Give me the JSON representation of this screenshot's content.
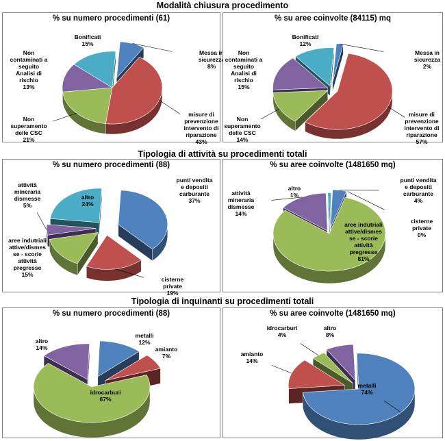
{
  "sections": [
    {
      "title": "Modalità chiusura procedimento"
    },
    {
      "title": "Tipologia di attività su procedimenti totali"
    },
    {
      "title": "Tipologia di inquinanti su procedimenti totali"
    }
  ],
  "colors": {
    "blue": "#4f81bd",
    "red": "#c0504d",
    "green": "#9bbb59",
    "purple": "#8064a2",
    "aqua": "#4bacc6"
  },
  "chart_data": [
    {
      "type": "pie",
      "title": "% su numero procedimenti (61)",
      "slices": [
        {
          "label": [
            "Messa in",
            "sicurezza"
          ],
          "pct": "8%",
          "value": 8,
          "color": "blue"
        },
        {
          "label": [
            "misure di",
            "prevenzione",
            "intervento di",
            "riparazione"
          ],
          "pct": "43%",
          "value": 43,
          "color": "red"
        },
        {
          "label": [
            "Non",
            "superamento",
            "delle CSC"
          ],
          "pct": "21%",
          "value": 21,
          "color": "green"
        },
        {
          "label": [
            "Non",
            "contaminati a",
            "seguito",
            "Analisi di",
            "rischio"
          ],
          "pct": "13%",
          "value": 13,
          "color": "purple"
        },
        {
          "label": [
            "Bonificati"
          ],
          "pct": "15%",
          "value": 15,
          "color": "aqua"
        }
      ]
    },
    {
      "type": "pie",
      "title": "% su aree coinvolte (84115) mq",
      "slices": [
        {
          "label": [
            "Messa in",
            "sicurezza"
          ],
          "pct": "2%",
          "value": 2,
          "color": "blue"
        },
        {
          "label": [
            "misure di",
            "prevenzione",
            "intervento di",
            "riparazione"
          ],
          "pct": "57%",
          "value": 57,
          "color": "red"
        },
        {
          "label": [
            "Non",
            "superamento",
            "delle CSC"
          ],
          "pct": "14%",
          "value": 14,
          "color": "green"
        },
        {
          "label": [
            "Non",
            "contaminati a",
            "seguito",
            "Analisi di",
            "rischio"
          ],
          "pct": "15%",
          "value": 15,
          "color": "purple"
        },
        {
          "label": [
            "Bonificati"
          ],
          "pct": "12%",
          "value": 12,
          "color": "aqua"
        }
      ]
    },
    {
      "type": "pie",
      "title": "% su numero procedimenti (88)",
      "slices": [
        {
          "label": [
            "punti vendita",
            "e depositi",
            "carburante"
          ],
          "pct": "37%",
          "value": 37,
          "color": "blue"
        },
        {
          "label": [
            "cisterne",
            "private"
          ],
          "pct": "19%",
          "value": 19,
          "color": "red"
        },
        {
          "label": [
            "aree indutriali",
            "attive/dismes",
            "se - scorie",
            "attività",
            "pregresse"
          ],
          "pct": "15%",
          "value": 15,
          "color": "green"
        },
        {
          "label": [
            "attività",
            "mineraria",
            "dismesse"
          ],
          "pct": "5%",
          "value": 5,
          "color": "purple"
        },
        {
          "label": [
            "altro"
          ],
          "pct": "24%",
          "value": 24,
          "color": "aqua"
        }
      ]
    },
    {
      "type": "pie",
      "title": "% su aree coinvolte (1481650 mq)",
      "slices": [
        {
          "label": [
            "punti vendita",
            "e depositi",
            "carburante"
          ],
          "pct": "4%",
          "value": 4,
          "color": "blue"
        },
        {
          "label": [
            "cisterne",
            "private"
          ],
          "pct": "0%",
          "value": 0,
          "color": "red"
        },
        {
          "label": [
            "aree indutriali",
            "attive/dismes",
            "se - scorie",
            "attività",
            "pregresse"
          ],
          "pct": "81%",
          "value": 81,
          "color": "green"
        },
        {
          "label": [
            "attività",
            "mineraria",
            "dismesse"
          ],
          "pct": "14%",
          "value": 14,
          "color": "purple"
        },
        {
          "label": [
            "altro"
          ],
          "pct": "1%",
          "value": 1,
          "color": "aqua"
        }
      ]
    },
    {
      "type": "pie",
      "title": "% su numero procedimenti (88)",
      "slices": [
        {
          "label": [
            "metalli"
          ],
          "pct": "12%",
          "value": 12,
          "color": "blue"
        },
        {
          "label": [
            "amianto"
          ],
          "pct": "7%",
          "value": 7,
          "color": "red"
        },
        {
          "label": [
            "idrocarburi"
          ],
          "pct": "67%",
          "value": 67,
          "color": "green"
        },
        {
          "label": [
            "altro"
          ],
          "pct": "14%",
          "value": 14,
          "color": "purple"
        }
      ]
    },
    {
      "type": "pie",
      "title": "% su aree coinvolte (1481650 mq)",
      "slices": [
        {
          "label": [
            "metalli"
          ],
          "pct": "74%",
          "value": 74,
          "color": "blue"
        },
        {
          "label": [
            "amianto"
          ],
          "pct": "14%",
          "value": 14,
          "color": "red"
        },
        {
          "label": [
            "idrocarburi"
          ],
          "pct": "4%",
          "value": 4,
          "color": "green"
        },
        {
          "label": [
            "altro"
          ],
          "pct": "8%",
          "value": 8,
          "color": "purple"
        }
      ]
    }
  ]
}
